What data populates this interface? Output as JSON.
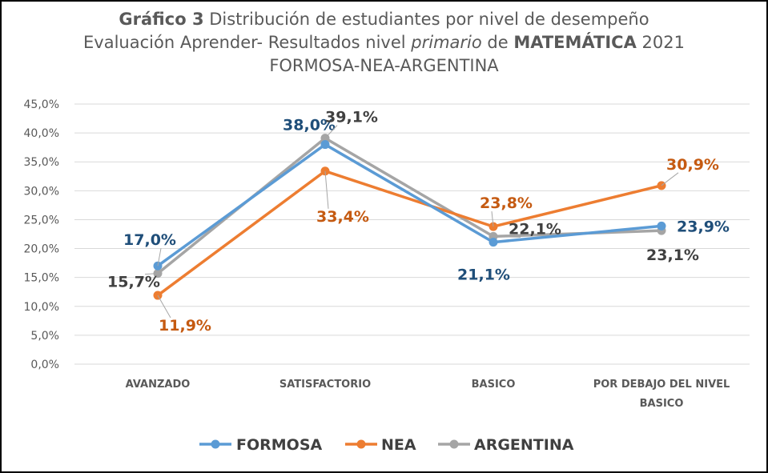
{
  "title": {
    "line1_bold": "Gráfico 3",
    "line1_rest": " Distribución de estudiantes por nivel de desempeño",
    "line2_a": "Evaluación Aprender- Resultados nivel ",
    "line2_italic": "primario",
    "line2_b": " de ",
    "line2_bold": "MATEMÁTICA",
    "line2_c": " 2021",
    "line3": "FORMOSA-NEA-ARGENTINA"
  },
  "chart_data": {
    "type": "line",
    "categories": [
      [
        "AVANZADO"
      ],
      [
        "SATISFACTORIO"
      ],
      [
        "BASICO"
      ],
      [
        "POR DEBAJO DEL NIVEL",
        "BASICO"
      ]
    ],
    "series": [
      {
        "name": "FORMOSA",
        "values": [
          17.0,
          38.0,
          21.1,
          23.9
        ],
        "labels": [
          "17,0%",
          "38,0%",
          "21,1%",
          "23,9%"
        ],
        "color": "#5b9bd5",
        "label_color": "#1f4e79"
      },
      {
        "name": "NEA",
        "values": [
          11.9,
          33.4,
          23.8,
          30.9
        ],
        "labels": [
          "11,9%",
          "33,4%",
          "23,8%",
          "30,9%"
        ],
        "color": "#ed7d31",
        "label_color": "#c55a11"
      },
      {
        "name": "ARGENTINA",
        "values": [
          15.7,
          39.1,
          22.1,
          23.1
        ],
        "labels": [
          "15,7%",
          "39,1%",
          "22,1%",
          "23,1%"
        ],
        "color": "#a5a5a5",
        "label_color": "#404040"
      }
    ],
    "ylim": [
      0,
      45
    ],
    "yticks": [
      "0,0%",
      "5,0%",
      "10,0%",
      "15,0%",
      "20,0%",
      "25,0%",
      "30,0%",
      "35,0%",
      "40,0%",
      "45,0%"
    ],
    "grid": true,
    "legend_position": "bottom"
  }
}
